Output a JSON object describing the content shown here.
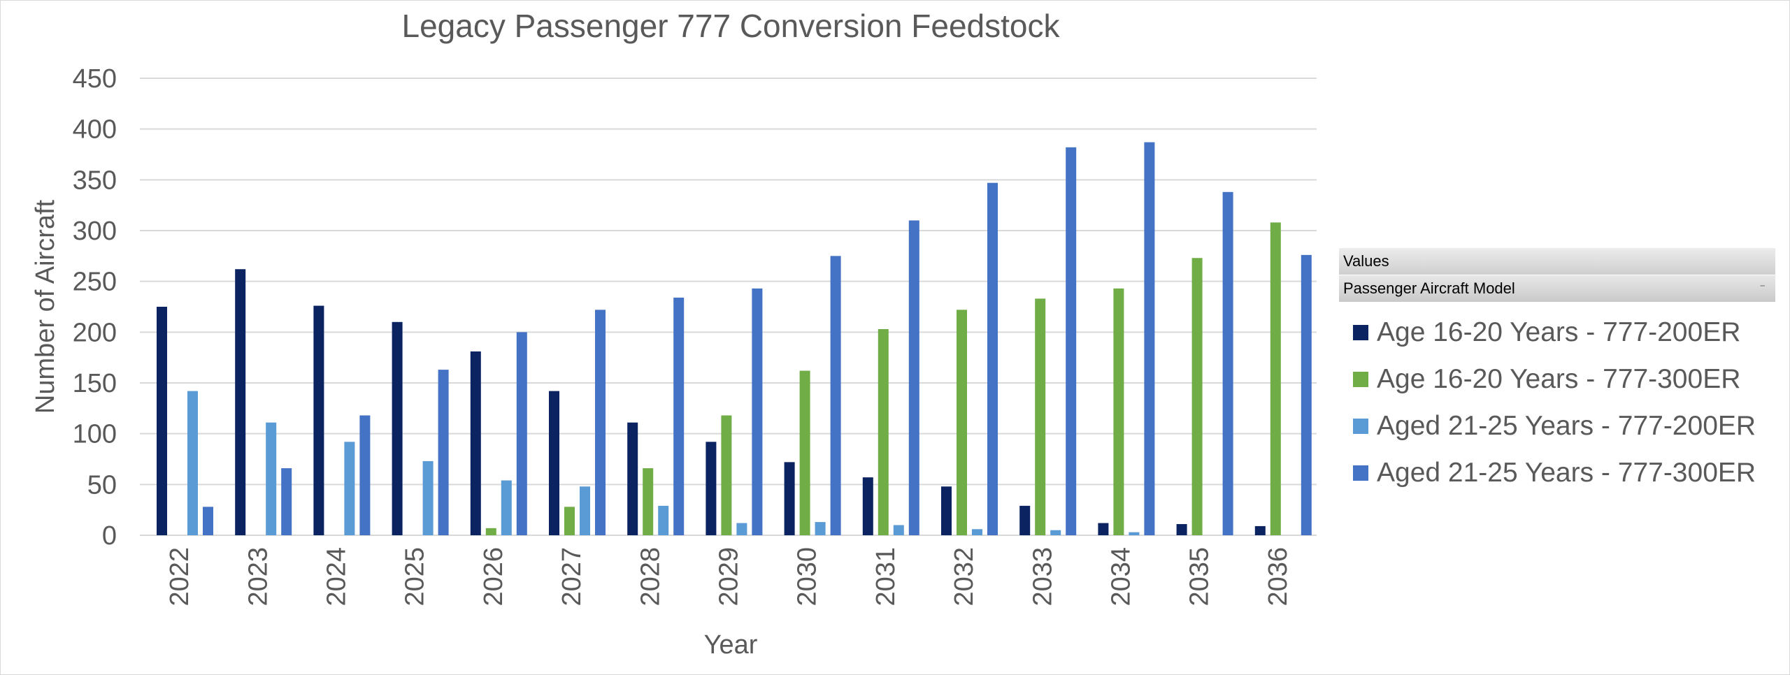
{
  "chart_data": {
    "type": "bar",
    "title": "Legacy Passenger 777 Conversion Feedstock",
    "xlabel": "Year",
    "ylabel": "Number of Aircraft",
    "ylim": [
      0,
      450
    ],
    "yticks": [
      0,
      50,
      100,
      150,
      200,
      250,
      300,
      350,
      400,
      450
    ],
    "grid": true,
    "legend_placement": "right",
    "categories": [
      "2022",
      "2023",
      "2024",
      "2025",
      "2026",
      "2027",
      "2028",
      "2029",
      "2030",
      "2031",
      "2032",
      "2033",
      "2034",
      "2035",
      "2036"
    ],
    "series": [
      {
        "name": "Age 16-20 Years - 777-200ER",
        "color": "#0b2461",
        "values": [
          225,
          262,
          226,
          210,
          181,
          142,
          111,
          92,
          72,
          57,
          48,
          29,
          12,
          11,
          9
        ]
      },
      {
        "name": "Age 16-20 Years - 777-300ER",
        "color": "#70ad47",
        "values": [
          0,
          0,
          0,
          0,
          7,
          28,
          66,
          118,
          162,
          203,
          222,
          233,
          243,
          273,
          308
        ]
      },
      {
        "name": "Aged 21-25 Years - 777-200ER",
        "color": "#5b9bd5",
        "values": [
          142,
          111,
          92,
          73,
          54,
          48,
          29,
          12,
          13,
          10,
          6,
          5,
          3,
          0,
          0
        ]
      },
      {
        "name": "Aged 21-25 Years - 777-300ER",
        "color": "#4472c4",
        "values": [
          28,
          66,
          118,
          163,
          200,
          222,
          234,
          243,
          275,
          310,
          347,
          382,
          387,
          338,
          276
        ]
      }
    ]
  },
  "pivot": {
    "values_label": "Values",
    "field_label": "Passenger Aircraft Model",
    "dropdown_icon": "dropdown-arrow-icon"
  },
  "colors": {
    "gridline": "#d9d9d9",
    "text": "#595959"
  }
}
